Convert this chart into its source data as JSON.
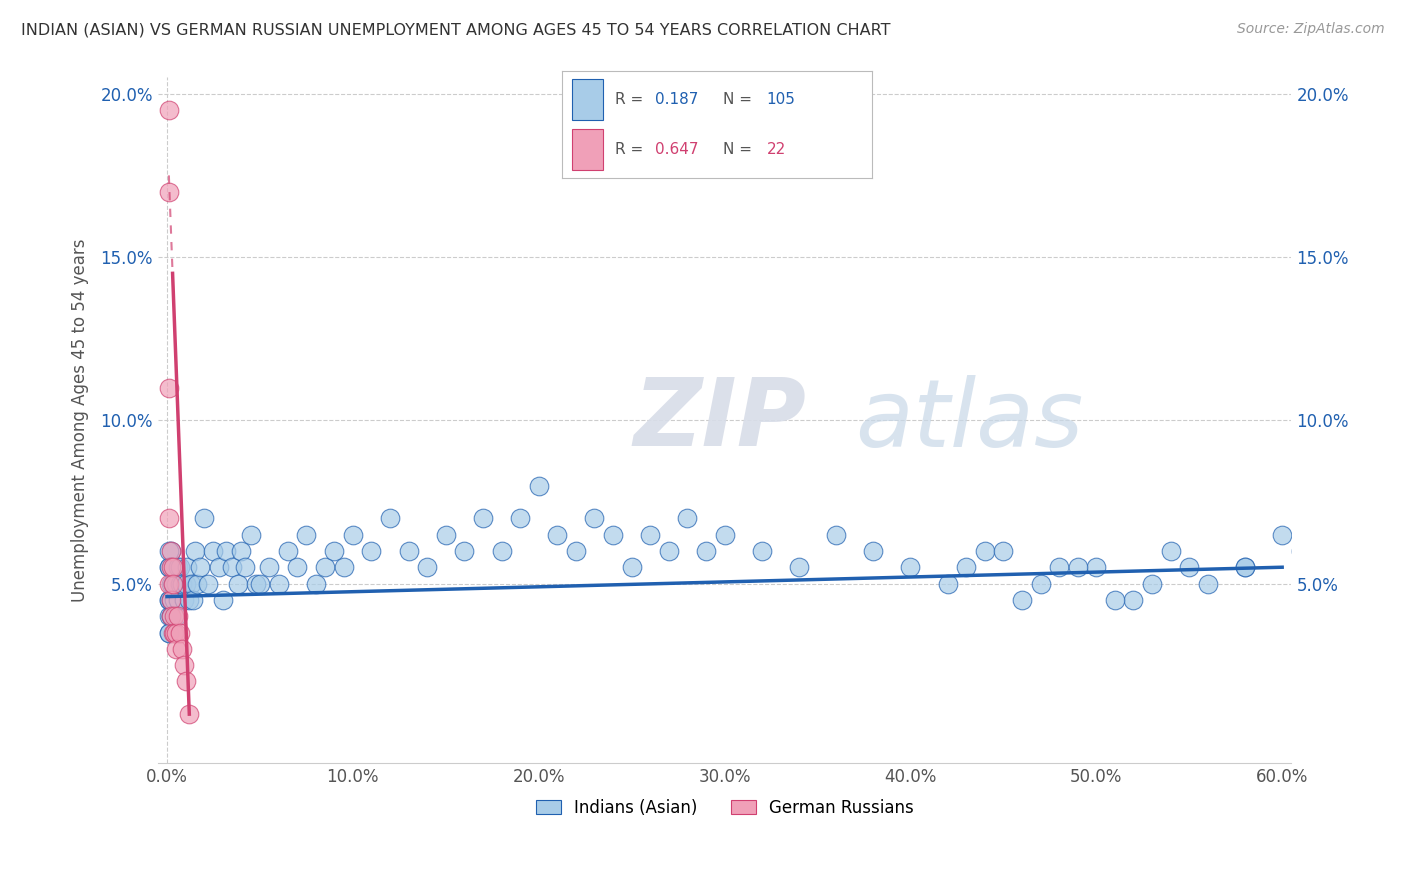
{
  "title": "INDIAN (ASIAN) VS GERMAN RUSSIAN UNEMPLOYMENT AMONG AGES 45 TO 54 YEARS CORRELATION CHART",
  "source": "Source: ZipAtlas.com",
  "ylabel": "Unemployment Among Ages 45 to 54 years",
  "xlim": [
    -0.005,
    0.605
  ],
  "ylim": [
    -0.005,
    0.205
  ],
  "xticks": [
    0.0,
    0.1,
    0.2,
    0.3,
    0.4,
    0.5,
    0.6
  ],
  "xticklabels": [
    "0.0%",
    "10.0%",
    "20.0%",
    "30.0%",
    "40.0%",
    "50.0%",
    "60.0%"
  ],
  "yticks": [
    0.0,
    0.05,
    0.1,
    0.15,
    0.2
  ],
  "yticklabels": [
    "",
    "5.0%",
    "10.0%",
    "15.0%",
    "20.0%"
  ],
  "legend_blue_r": "0.187",
  "legend_blue_n": "105",
  "legend_pink_r": "0.647",
  "legend_pink_n": "22",
  "blue_scatter_color": "#a8cce8",
  "pink_scatter_color": "#f0a0b8",
  "trend_blue_color": "#2060b0",
  "trend_pink_color": "#d04070",
  "watermark_zip": "ZIP",
  "watermark_atlas": "atlas",
  "blue_scatter_x": [
    0.002,
    0.001,
    0.003,
    0.001,
    0.002,
    0.001,
    0.003,
    0.002,
    0.001,
    0.002,
    0.003,
    0.001,
    0.002,
    0.001,
    0.003,
    0.002,
    0.001,
    0.002,
    0.003,
    0.001,
    0.005,
    0.004,
    0.006,
    0.005,
    0.007,
    0.006,
    0.008,
    0.007,
    0.009,
    0.008,
    0.01,
    0.012,
    0.011,
    0.013,
    0.015,
    0.014,
    0.016,
    0.018,
    0.02,
    0.022,
    0.025,
    0.028,
    0.03,
    0.032,
    0.035,
    0.038,
    0.04,
    0.042,
    0.045,
    0.048,
    0.05,
    0.055,
    0.06,
    0.065,
    0.07,
    0.075,
    0.08,
    0.085,
    0.09,
    0.095,
    0.1,
    0.11,
    0.12,
    0.13,
    0.14,
    0.15,
    0.16,
    0.17,
    0.18,
    0.19,
    0.2,
    0.21,
    0.22,
    0.23,
    0.24,
    0.25,
    0.26,
    0.27,
    0.28,
    0.29,
    0.3,
    0.32,
    0.34,
    0.36,
    0.38,
    0.4,
    0.42,
    0.44,
    0.46,
    0.48,
    0.5,
    0.52,
    0.54,
    0.56,
    0.58,
    0.6,
    0.61,
    0.58,
    0.55,
    0.53,
    0.51,
    0.49,
    0.47,
    0.45,
    0.43
  ],
  "blue_scatter_y": [
    0.05,
    0.045,
    0.055,
    0.04,
    0.06,
    0.035,
    0.05,
    0.045,
    0.055,
    0.04,
    0.05,
    0.045,
    0.04,
    0.035,
    0.05,
    0.055,
    0.06,
    0.045,
    0.05,
    0.055,
    0.05,
    0.045,
    0.055,
    0.04,
    0.05,
    0.045,
    0.05,
    0.055,
    0.045,
    0.05,
    0.05,
    0.045,
    0.055,
    0.05,
    0.06,
    0.045,
    0.05,
    0.055,
    0.07,
    0.05,
    0.06,
    0.055,
    0.045,
    0.06,
    0.055,
    0.05,
    0.06,
    0.055,
    0.065,
    0.05,
    0.05,
    0.055,
    0.05,
    0.06,
    0.055,
    0.065,
    0.05,
    0.055,
    0.06,
    0.055,
    0.065,
    0.06,
    0.07,
    0.06,
    0.055,
    0.065,
    0.06,
    0.07,
    0.06,
    0.07,
    0.08,
    0.065,
    0.06,
    0.07,
    0.065,
    0.055,
    0.065,
    0.06,
    0.07,
    0.06,
    0.065,
    0.06,
    0.055,
    0.065,
    0.06,
    0.055,
    0.05,
    0.06,
    0.045,
    0.055,
    0.055,
    0.045,
    0.06,
    0.05,
    0.055,
    0.065,
    0.06,
    0.055,
    0.055,
    0.05,
    0.045,
    0.055,
    0.05,
    0.06,
    0.055
  ],
  "pink_scatter_x": [
    0.001,
    0.001,
    0.001,
    0.001,
    0.001,
    0.002,
    0.002,
    0.002,
    0.002,
    0.003,
    0.003,
    0.003,
    0.004,
    0.004,
    0.005,
    0.005,
    0.006,
    0.007,
    0.008,
    0.009,
    0.01,
    0.012
  ],
  "pink_scatter_y": [
    0.195,
    0.17,
    0.11,
    0.07,
    0.05,
    0.06,
    0.055,
    0.045,
    0.04,
    0.055,
    0.05,
    0.035,
    0.04,
    0.035,
    0.035,
    0.03,
    0.04,
    0.035,
    0.03,
    0.025,
    0.02,
    0.01
  ],
  "blue_trend_x0": 0.0,
  "blue_trend_y0": 0.046,
  "blue_trend_x1": 0.6,
  "blue_trend_y1": 0.055,
  "pink_trend_solid_x0": 0.003,
  "pink_trend_solid_y0": 0.145,
  "pink_trend_solid_x1": 0.012,
  "pink_trend_solid_y1": 0.01,
  "pink_trend_dashed_x0": 0.003,
  "pink_trend_dashed_y0": 0.145,
  "pink_trend_dashed_x1": 0.008,
  "pink_trend_dashed_y1": 0.205
}
